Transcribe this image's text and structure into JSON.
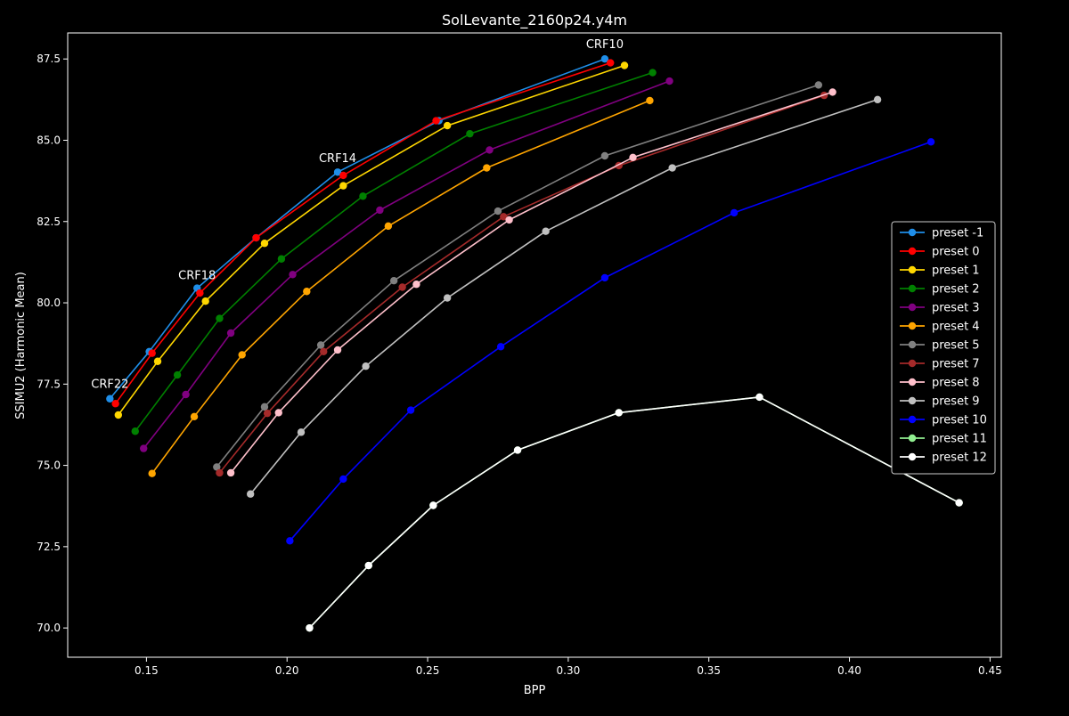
{
  "chart_data": {
    "type": "line",
    "title": "SolLevante_2160p24.y4m",
    "xlabel": "BPP",
    "ylabel": "SSIMU2 (Harmonic Mean)",
    "xlim": [
      0.122,
      0.454
    ],
    "ylim": [
      69.1,
      88.3
    ],
    "xticks": [
      0.15,
      0.2,
      0.25,
      0.3,
      0.35,
      0.4,
      0.45
    ],
    "xtick_labels": [
      "0.15",
      "0.20",
      "0.25",
      "0.30",
      "0.35",
      "0.40",
      "0.45"
    ],
    "yticks": [
      70.0,
      72.5,
      75.0,
      77.5,
      80.0,
      82.5,
      85.0,
      87.5
    ],
    "ytick_labels": [
      "70.0",
      "72.5",
      "75.0",
      "77.5",
      "80.0",
      "82.5",
      "85.0",
      "87.5"
    ],
    "grid": false,
    "legend_position": "center-right",
    "background": "#000000",
    "annotations": [
      {
        "text": "CRF10",
        "x": 0.313,
        "y": 87.5
      },
      {
        "text": "CRF14",
        "x": 0.218,
        "y": 84.0
      },
      {
        "text": "CRF18",
        "x": 0.168,
        "y": 80.4
      },
      {
        "text": "CRF22",
        "x": 0.137,
        "y": 77.05
      }
    ],
    "series": [
      {
        "name": "preset -1",
        "color": "#1f8ee8",
        "x": [
          0.137,
          0.151,
          0.168,
          0.189,
          0.218,
          0.254,
          0.313
        ],
        "y": [
          77.05,
          78.5,
          80.45,
          82.0,
          84.02,
          85.6,
          87.5
        ]
      },
      {
        "name": "preset 0",
        "color": "#ff0000",
        "x": [
          0.139,
          0.152,
          0.169,
          0.189,
          0.22,
          0.253,
          0.315
        ],
        "y": [
          76.9,
          78.45,
          80.3,
          82.0,
          83.92,
          85.6,
          87.38
        ]
      },
      {
        "name": "preset 1",
        "color": "#ffd700",
        "x": [
          0.14,
          0.154,
          0.171,
          0.192,
          0.22,
          0.257,
          0.32
        ],
        "y": [
          76.55,
          78.2,
          80.05,
          81.83,
          83.6,
          85.45,
          87.3
        ]
      },
      {
        "name": "preset 2",
        "color": "#008000",
        "x": [
          0.146,
          0.161,
          0.176,
          0.198,
          0.227,
          0.265,
          0.33
        ],
        "y": [
          76.05,
          77.78,
          79.52,
          81.35,
          83.28,
          85.2,
          87.08
        ]
      },
      {
        "name": "preset 3",
        "color": "#800080",
        "x": [
          0.149,
          0.164,
          0.18,
          0.202,
          0.233,
          0.272,
          0.336
        ],
        "y": [
          75.52,
          77.18,
          79.07,
          80.87,
          82.85,
          84.7,
          86.82
        ]
      },
      {
        "name": "preset 4",
        "color": "#ffa500",
        "x": [
          0.152,
          0.167,
          0.184,
          0.207,
          0.236,
          0.271,
          0.329
        ],
        "y": [
          74.75,
          76.5,
          78.4,
          80.35,
          82.36,
          84.15,
          86.22
        ]
      },
      {
        "name": "preset 5",
        "color": "#808080",
        "x": [
          0.175,
          0.192,
          0.212,
          0.238,
          0.275,
          0.313,
          0.389
        ],
        "y": [
          74.95,
          76.8,
          78.7,
          80.68,
          82.82,
          84.52,
          86.7
        ]
      },
      {
        "name": "preset 7",
        "color": "#a52a2a",
        "x": [
          0.176,
          0.193,
          0.213,
          0.241,
          0.277,
          0.318,
          0.391
        ],
        "y": [
          74.77,
          76.6,
          78.5,
          80.48,
          82.65,
          84.22,
          86.38
        ]
      },
      {
        "name": "preset 8",
        "color": "#ffc0cb",
        "x": [
          0.18,
          0.197,
          0.218,
          0.246,
          0.279,
          0.323,
          0.394
        ],
        "y": [
          74.77,
          76.62,
          78.55,
          80.57,
          82.55,
          84.47,
          86.48
        ]
      },
      {
        "name": "preset 9",
        "color": "#c0c0c0",
        "x": [
          0.187,
          0.205,
          0.228,
          0.257,
          0.292,
          0.337,
          0.41
        ],
        "y": [
          74.12,
          76.02,
          78.05,
          80.15,
          82.2,
          84.15,
          86.25
        ]
      },
      {
        "name": "preset 10",
        "color": "#0000ff",
        "x": [
          0.201,
          0.22,
          0.244,
          0.276,
          0.313,
          0.359,
          0.429
        ],
        "y": [
          72.68,
          74.58,
          76.7,
          78.65,
          80.77,
          82.77,
          84.95
        ]
      },
      {
        "name": "preset 11",
        "color": "#90ee90",
        "x": [
          0.208,
          0.229,
          0.252,
          0.282,
          0.318,
          0.368,
          0.439
        ],
        "y": [
          70.0,
          71.92,
          73.77,
          75.47,
          76.62,
          77.1,
          73.85
        ]
      },
      {
        "name": "preset 12",
        "color": "#ffffff",
        "x": [
          0.208,
          0.229,
          0.252,
          0.282,
          0.318,
          0.368,
          0.439
        ],
        "y": [
          70.0,
          71.92,
          73.77,
          75.47,
          76.62,
          77.1,
          73.85
        ]
      }
    ]
  }
}
